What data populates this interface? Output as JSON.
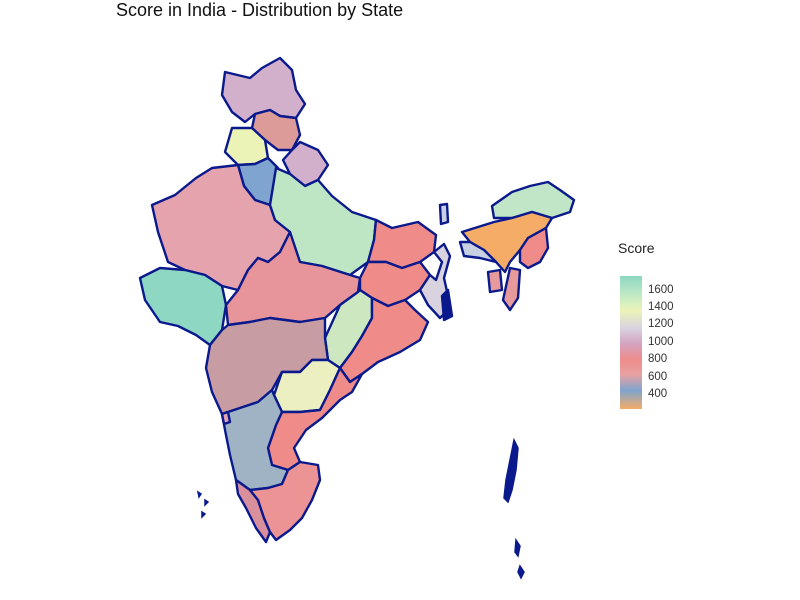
{
  "title": "Score in India - Distribution by State",
  "legend": {
    "title": "Score",
    "ticks": [
      "1600",
      "1400",
      "1200",
      "1000",
      "800",
      "600",
      "400"
    ]
  },
  "colors": {
    "border": "#0a1a8c",
    "scale_high": "#8ed7c2",
    "scale_mid": "#ef8c8a",
    "scale_low": "#f4ac67"
  }
}
